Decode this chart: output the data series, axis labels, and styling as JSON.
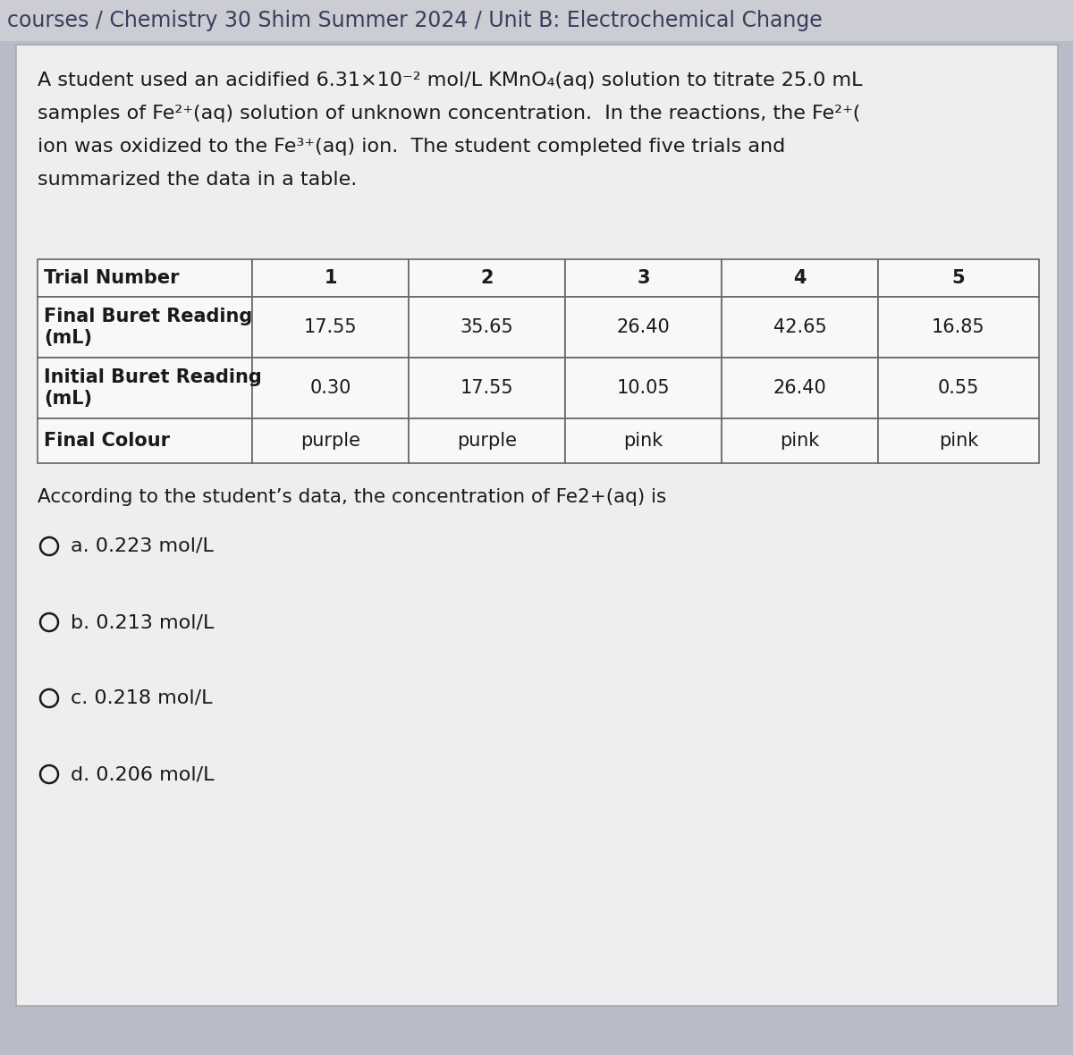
{
  "breadcrumb": "courses / Chemistry 30 Shim Summer 2024 / Unit B: Electrochemical Change",
  "breadcrumb_color": "#3d3d5c",
  "breadcrumb_bg": "#cbccd4",
  "main_bg": "#b8bcc8",
  "card_bg": "#eeeef0",
  "card_border": "#aaaaaa",
  "para_line1": "A student used an acidified 6.31×10⁻² mol/L KMnO₄(aq) solution to titrate 25.0 mL",
  "para_line2": "samples of Fe²⁺(aq) solution of unknown concentration.  In the reactions, the Fe²⁺(",
  "para_line3": "ion was oxidized to the Fe³⁺(aq) ion.  The student completed five trials and",
  "para_line4": "summarized the data in a table.",
  "table_headers": [
    "Trial Number",
    "1",
    "2",
    "3",
    "4",
    "5"
  ],
  "row1_label": "Final Buret Reading\n(mL)",
  "row1_values": [
    "17.55",
    "35.65",
    "26.40",
    "42.65",
    "16.85"
  ],
  "row2_label": "Initial Buret Reading\n(mL)",
  "row2_values": [
    "0.30",
    "17.55",
    "10.05",
    "26.40",
    "0.55"
  ],
  "row3_label": "Final Colour",
  "row3_values": [
    "purple",
    "purple",
    "pink",
    "pink",
    "pink"
  ],
  "question": "According to the student’s data, the concentration of Fe2+(aq) is",
  "options": [
    "a. 0.223 mol/L",
    "b. 0.213 mol/L",
    "c. 0.218 mol/L",
    "d. 0.206 mol/L"
  ],
  "text_color": "#1a1a1a",
  "table_bg": "#f8f8f8",
  "table_border_color": "#666666",
  "font_size_breadcrumb": 17,
  "font_size_paragraph": 16,
  "font_size_table_header": 15,
  "font_size_table_data": 15,
  "font_size_question": 15.5,
  "font_size_options": 16
}
